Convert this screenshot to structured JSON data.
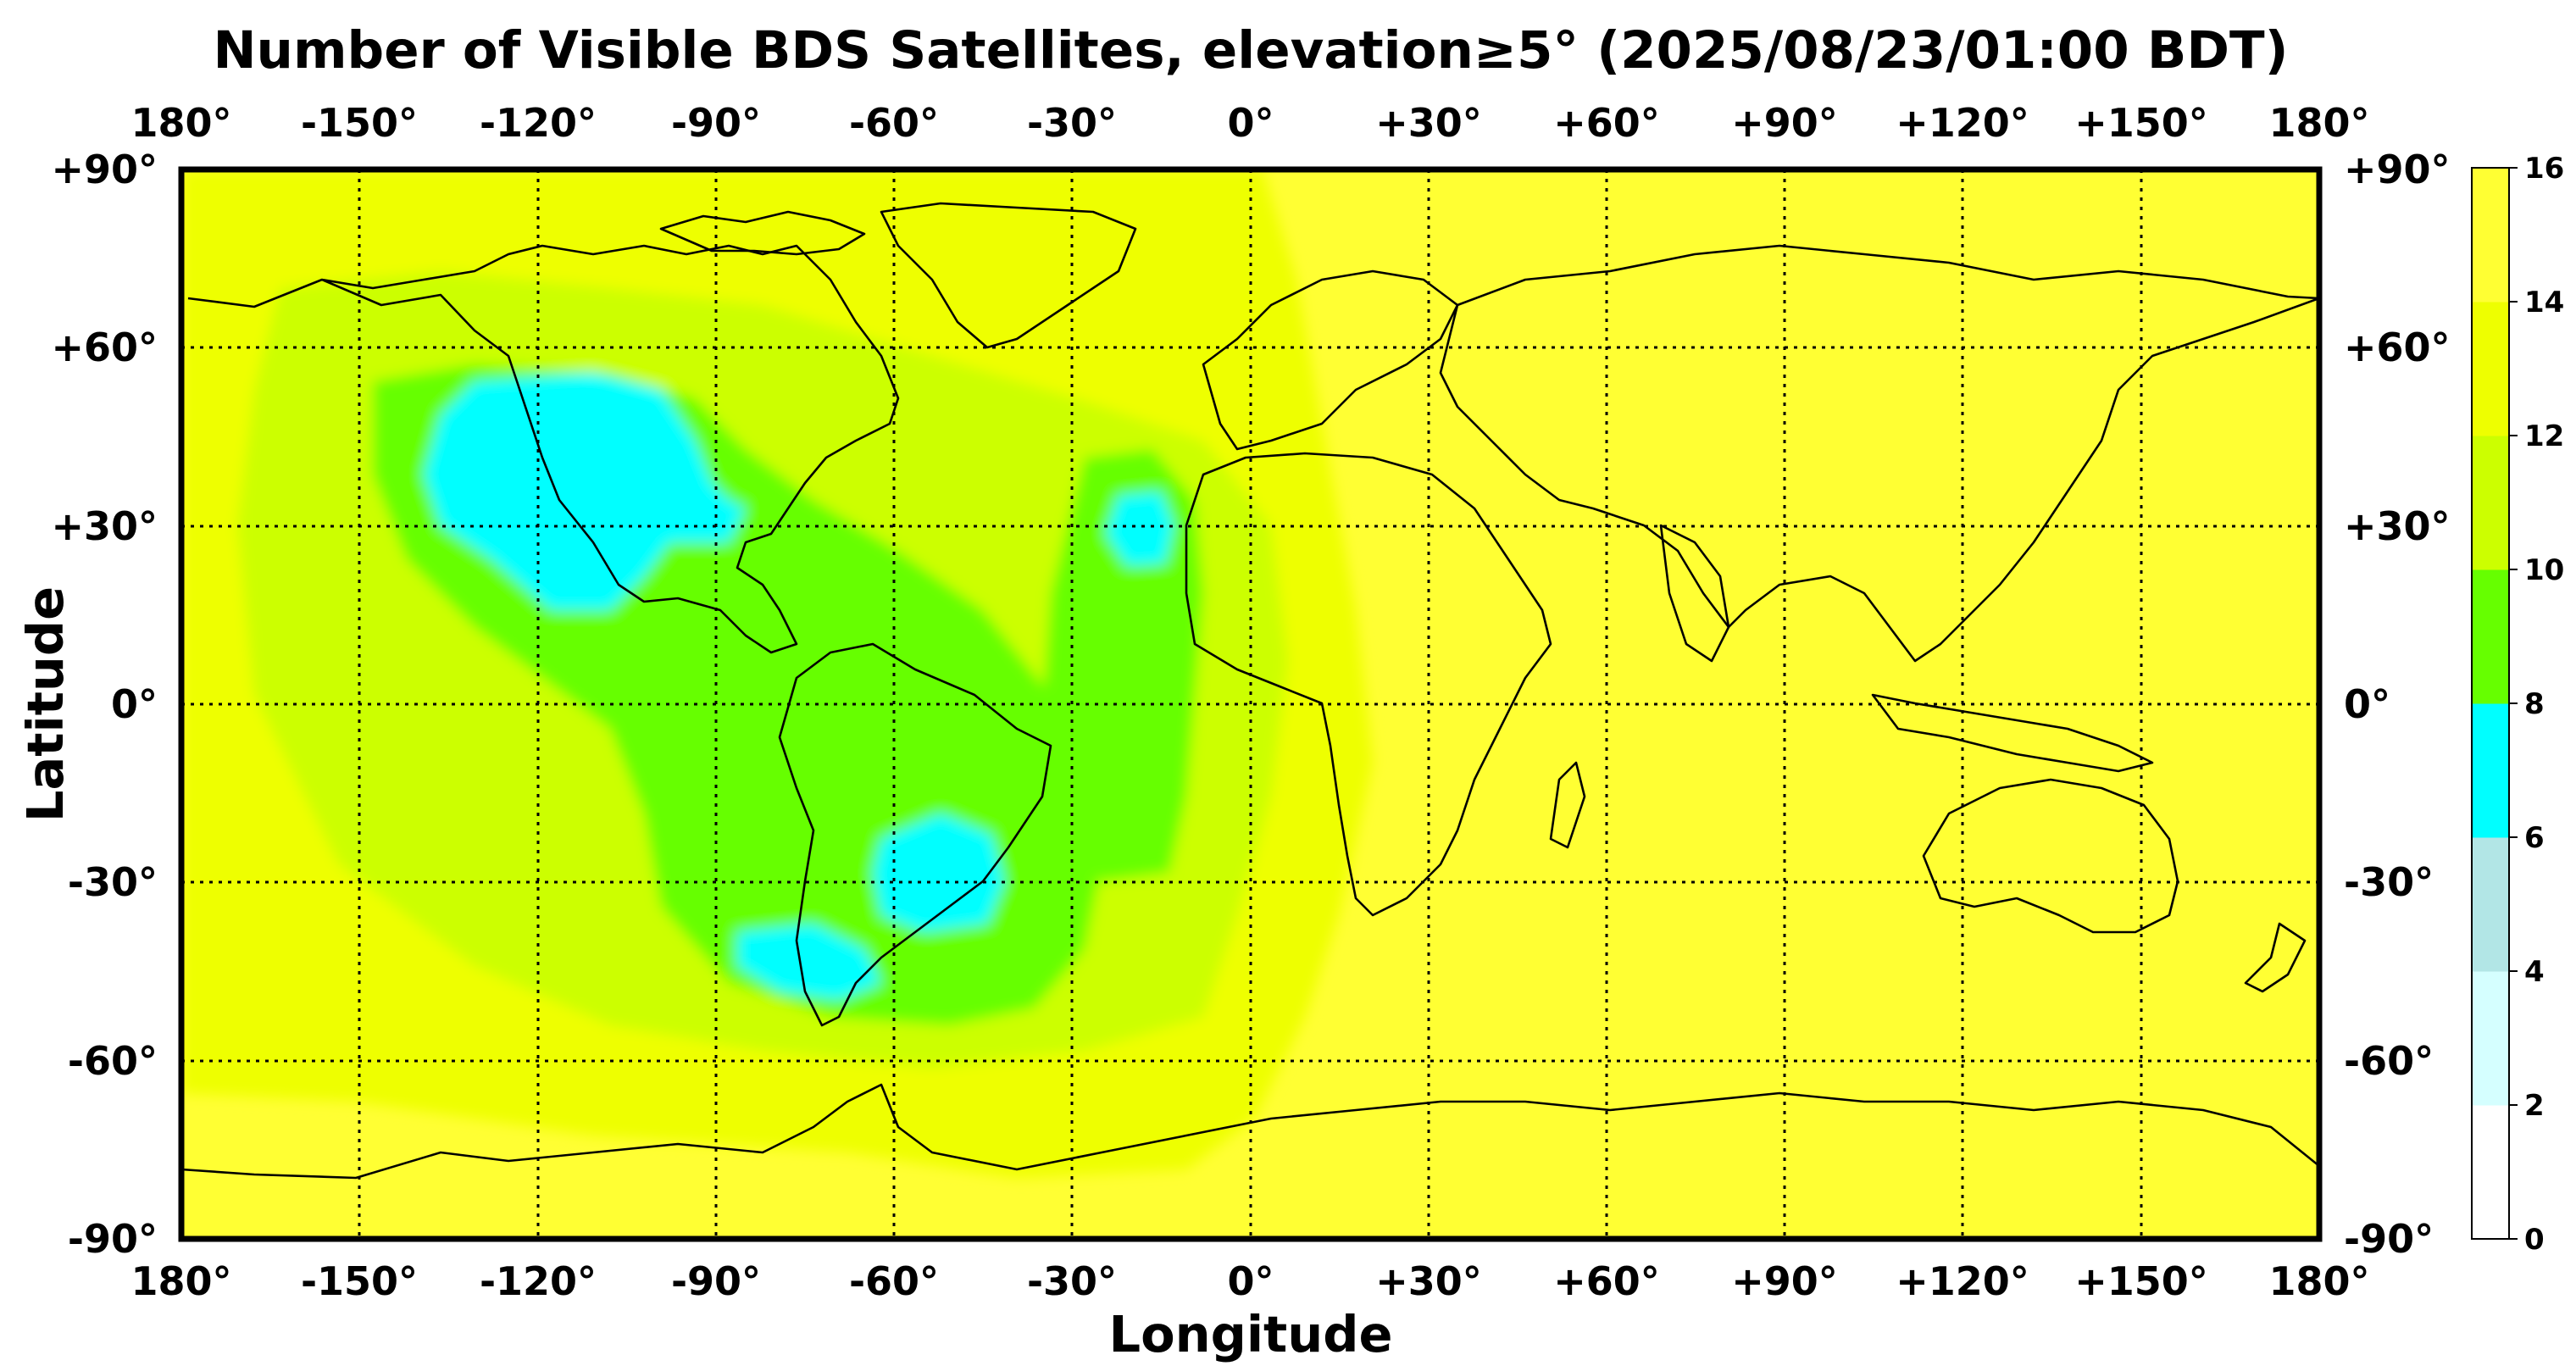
{
  "title": "Number of Visible BDS Satellites, elevation≥5° (2025/08/23/01:00 BDT)",
  "xlabel": "Longitude",
  "ylabel": "Latitude",
  "lon_ticks": [
    "180°",
    "-150°",
    "-120°",
    "-90°",
    "-60°",
    "-30°",
    "0°",
    "+30°",
    "+60°",
    "+90°",
    "+120°",
    "+150°",
    "180°"
  ],
  "lat_ticks": [
    "+90°",
    "+60°",
    "+30°",
    "0°",
    "-30°",
    "-60°",
    "-90°"
  ],
  "colorbar": {
    "ticks": [
      "0",
      "2",
      "4",
      "6",
      "8",
      "10",
      "12",
      "14",
      "16"
    ],
    "colors": [
      "#ffffff",
      "#d5ffff",
      "#b2e6e6",
      "#00ffff",
      "#66ff00",
      "#ccff00",
      "#eeff00",
      "#ffff33"
    ]
  },
  "chart_data": {
    "type": "heatmap",
    "title": "Number of Visible BDS Satellites, elevation≥5° (2025/08/23/01:00 BDT)",
    "xlabel": "Longitude",
    "ylabel": "Latitude",
    "xlim": [
      -180,
      180
    ],
    "ylim": [
      -90,
      90
    ],
    "x_ticks": [
      -180,
      -150,
      -120,
      -90,
      -60,
      -30,
      0,
      30,
      60,
      90,
      120,
      150,
      180
    ],
    "y_ticks": [
      90,
      60,
      30,
      0,
      -30,
      -60,
      -90
    ],
    "grid": true,
    "colorbar_range": [
      0,
      16
    ],
    "levels": [
      0,
      2,
      4,
      6,
      8,
      10,
      12,
      14,
      16
    ],
    "regions": [
      {
        "description": "eastern hemisphere, Europe, Africa, Asia, Australia, Pacific west",
        "value_range": [
          14,
          16
        ]
      },
      {
        "description": "north-east Pacific and western North America",
        "value_range": [
          6,
          8
        ]
      },
      {
        "description": "central-east subtropical Atlantic near 20W 30N",
        "value_range": [
          6,
          8
        ]
      },
      {
        "description": "eastern South America near 50W 25S",
        "value_range": [
          6,
          8
        ]
      },
      {
        "description": "southern South America near 70W 45S",
        "value_range": [
          6,
          8
        ]
      },
      {
        "description": "eastern Pacific, Central America, South America, central Atlantic",
        "value_range": [
          8,
          10
        ]
      },
      {
        "description": "transition band surrounding the low region",
        "value_range": [
          10,
          14
        ]
      }
    ]
  }
}
